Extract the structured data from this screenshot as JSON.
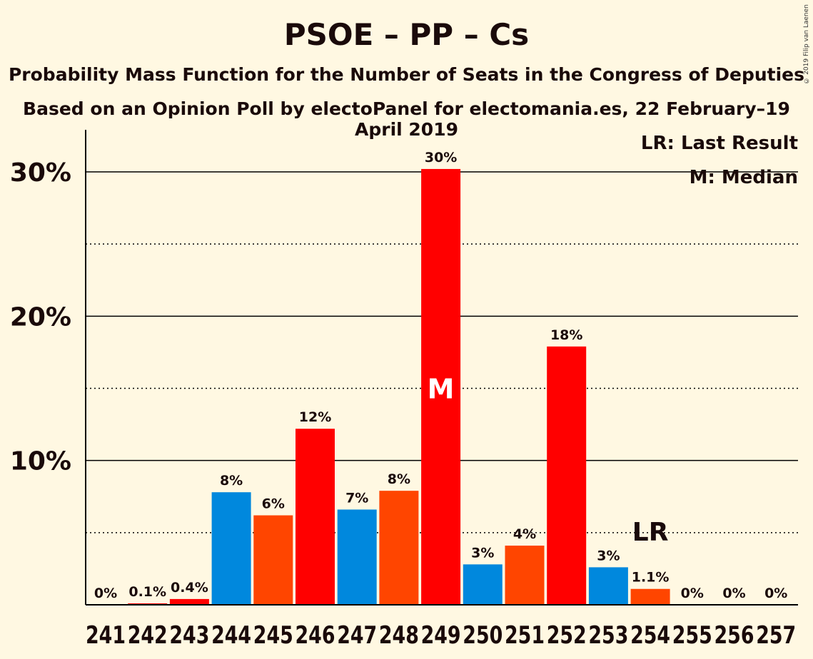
{
  "chart_data": {
    "type": "bar",
    "title": "PSOE – PP – Cs",
    "subtitle": "Probability Mass Function for the Number of Seats in the Congress of Deputies",
    "subtitle2": "Based on an Opinion Poll by electoPanel for electomania.es, 22 February–19 April 2019",
    "copyright": "© 2019 Filip van Laenen",
    "legend": {
      "placement": "top-right",
      "lr": "LR: Last Result",
      "median": "M: Median"
    },
    "ylim": [
      0,
      33
    ],
    "yticks": [
      {
        "value": 10,
        "label": "10%"
      },
      {
        "value": 20,
        "label": "20%"
      },
      {
        "value": 30,
        "label": "30%"
      }
    ],
    "minor_gridlines": [
      5,
      15,
      25
    ],
    "categories": [
      "241",
      "242",
      "243",
      "244",
      "245",
      "246",
      "247",
      "248",
      "249",
      "250",
      "251",
      "252",
      "253",
      "254",
      "255",
      "256",
      "257"
    ],
    "values": [
      0,
      0.1,
      0.4,
      7.8,
      6.2,
      12.2,
      6.6,
      7.9,
      30.2,
      2.8,
      4.1,
      17.9,
      2.6,
      1.1,
      0,
      0,
      0
    ],
    "labels": [
      "0%",
      "0.1%",
      "0.4%",
      "8%",
      "6%",
      "12%",
      "7%",
      "8%",
      "30%",
      "3%",
      "4%",
      "18%",
      "3%",
      "1.1%",
      "0%",
      "0%",
      "0%"
    ],
    "colors": [
      "#FF0000",
      "#FF0000",
      "#FF0000",
      "#0088DD",
      "#FF4500",
      "#FF0000",
      "#0088DD",
      "#FF4500",
      "#FF0000",
      "#0088DD",
      "#FF4500",
      "#FF0000",
      "#0088DD",
      "#FF4500",
      "#FF0000",
      "#FF0000",
      "#FF0000"
    ],
    "median": {
      "category": "249",
      "label": "M"
    },
    "last_result": {
      "category": "254",
      "label": "LR"
    }
  }
}
